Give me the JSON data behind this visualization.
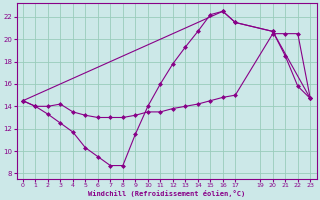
{
  "xlabel": "Windchill (Refroidissement éolien,°C)",
  "bg_color": "#cce8e8",
  "line_color": "#880088",
  "grid_color": "#99ccbb",
  "xlim": [
    -0.5,
    23.5
  ],
  "ylim": [
    7.5,
    23.2
  ],
  "xticks": [
    0,
    1,
    2,
    3,
    4,
    5,
    6,
    7,
    8,
    9,
    10,
    11,
    12,
    13,
    14,
    15,
    16,
    17,
    19,
    20,
    21,
    22,
    23
  ],
  "yticks": [
    8,
    10,
    12,
    14,
    16,
    18,
    20,
    22
  ],
  "series1_x": [
    0,
    1,
    2,
    3,
    4,
    5,
    6,
    7,
    8,
    9,
    10,
    11,
    12,
    13,
    14,
    15,
    16,
    17,
    20,
    21,
    22,
    23
  ],
  "series1_y": [
    14.5,
    14.0,
    13.3,
    12.5,
    11.7,
    10.3,
    9.5,
    8.7,
    8.7,
    11.5,
    14.0,
    16.0,
    17.8,
    19.3,
    20.7,
    22.2,
    22.5,
    21.5,
    20.7,
    18.5,
    15.8,
    14.7
  ],
  "series2_x": [
    0,
    1,
    2,
    3,
    4,
    5,
    6,
    7,
    8,
    9,
    10,
    11,
    12,
    13,
    14,
    15,
    16,
    17,
    20,
    21,
    22,
    23
  ],
  "series2_y": [
    14.5,
    14.0,
    14.0,
    14.2,
    13.5,
    13.2,
    13.0,
    13.0,
    13.0,
    13.2,
    13.5,
    13.5,
    13.8,
    14.0,
    14.2,
    14.5,
    14.8,
    15.0,
    20.5,
    20.5,
    20.5,
    14.7
  ],
  "series3_x": [
    0,
    16,
    17,
    20,
    23
  ],
  "series3_y": [
    14.5,
    22.5,
    21.5,
    20.7,
    14.7
  ]
}
